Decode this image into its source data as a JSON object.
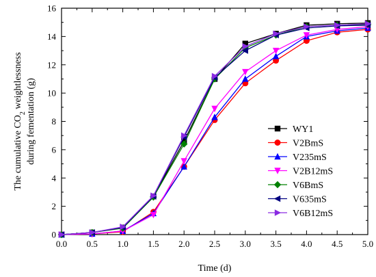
{
  "chart_data": {
    "type": "line",
    "xlabel": "Time (d)",
    "ylabel_line1": "The cumulative CO",
    "ylabel_sub": "2",
    "ylabel_line1_end": " weightlessness",
    "ylabel_line2": "during fementation (g)",
    "xlim": [
      0,
      5
    ],
    "ylim": [
      0,
      16
    ],
    "x_ticks": [
      "0.0",
      "0.5",
      "1.0",
      "1.5",
      "2.0",
      "2.5",
      "3.0",
      "3.5",
      "4.0",
      "4.5",
      "5.0"
    ],
    "y_ticks": [
      "0",
      "2",
      "4",
      "6",
      "8",
      "10",
      "12",
      "14",
      "16"
    ],
    "x": [
      0,
      0.5,
      1.0,
      1.5,
      2.0,
      2.5,
      3.0,
      3.5,
      4.0,
      4.5,
      5.0
    ],
    "legend_position": "center-right",
    "grid": false,
    "series": [
      {
        "name": "WY1",
        "color": "#000000",
        "marker": "square",
        "values": [
          0,
          0.15,
          0.5,
          2.7,
          6.6,
          11.0,
          13.5,
          14.2,
          14.8,
          14.9,
          14.95
        ]
      },
      {
        "name": "V2BmS",
        "color": "#ff0000",
        "marker": "circle",
        "values": [
          0,
          0.05,
          0.2,
          1.6,
          4.8,
          8.1,
          10.7,
          12.3,
          13.7,
          14.3,
          14.5
        ]
      },
      {
        "name": "V235mS",
        "color": "#0000ff",
        "marker": "triangle-up",
        "values": [
          0,
          0.05,
          0.25,
          1.5,
          4.8,
          8.3,
          11.0,
          12.6,
          14.0,
          14.4,
          14.6
        ]
      },
      {
        "name": "V2B12mS",
        "color": "#ff00ff",
        "marker": "triangle-down",
        "values": [
          0,
          0.05,
          0.25,
          1.4,
          5.2,
          8.9,
          11.5,
          13.0,
          14.1,
          14.5,
          14.7
        ]
      },
      {
        "name": "V6BmS",
        "color": "#008000",
        "marker": "diamond",
        "values": [
          0,
          0.15,
          0.45,
          2.65,
          6.4,
          11.0,
          13.2,
          14.1,
          14.7,
          14.8,
          14.85
        ]
      },
      {
        "name": "V635mS",
        "color": "#000080",
        "marker": "triangle-left",
        "values": [
          0,
          0.15,
          0.5,
          2.7,
          6.9,
          11.1,
          13.0,
          14.1,
          14.6,
          14.75,
          14.8
        ]
      },
      {
        "name": "V6B12mS",
        "color": "#8a2be2",
        "marker": "triangle-right",
        "values": [
          0,
          0.15,
          0.55,
          2.75,
          7.0,
          11.2,
          13.3,
          14.2,
          14.7,
          14.8,
          14.9
        ]
      }
    ]
  }
}
